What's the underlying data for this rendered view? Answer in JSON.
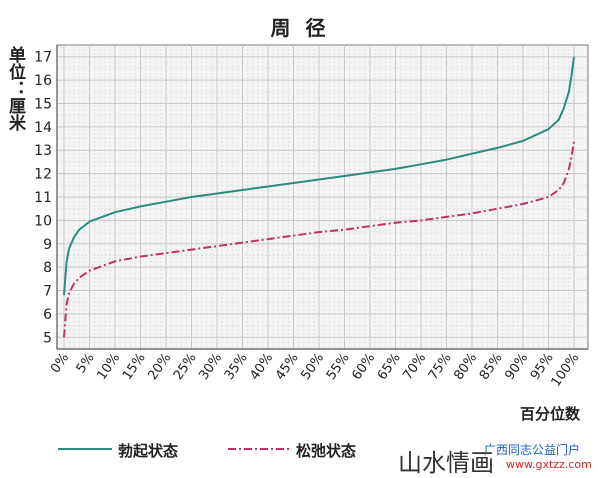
{
  "chart_data": {
    "type": "line",
    "title": "周 径",
    "ylabel": "单位：厘米",
    "xlabel": "百分位数",
    "ylim": [
      4.5,
      17.5
    ],
    "yticks": [
      5,
      6,
      7,
      8,
      9,
      10,
      11,
      12,
      13,
      14,
      15,
      16,
      17
    ],
    "xticks": [
      "0%",
      "5%",
      "10%",
      "15%",
      "20%",
      "25%",
      "30%",
      "35%",
      "40%",
      "45%",
      "50%",
      "55%",
      "60%",
      "65%",
      "70%",
      "75%",
      "80%",
      "85%",
      "90%",
      "95%",
      "100%"
    ],
    "x": [
      0,
      0.5,
      1,
      2,
      3,
      5,
      10,
      15,
      20,
      25,
      30,
      35,
      40,
      45,
      50,
      55,
      60,
      65,
      70,
      75,
      80,
      85,
      90,
      95,
      97,
      98,
      99,
      99.5,
      100
    ],
    "series": [
      {
        "name": "勃起状态",
        "color": "#2a8c80",
        "style": "solid",
        "values": [
          6.8,
          8.2,
          8.8,
          9.3,
          9.6,
          9.95,
          10.35,
          10.6,
          10.8,
          11.0,
          11.15,
          11.3,
          11.45,
          11.6,
          11.75,
          11.9,
          12.05,
          12.2,
          12.4,
          12.6,
          12.85,
          13.1,
          13.4,
          13.9,
          14.3,
          14.8,
          15.5,
          16.2,
          17.0
        ]
      },
      {
        "name": "松弛状态",
        "color": "#c0306e",
        "style": "dashdot",
        "values": [
          5.0,
          6.4,
          6.9,
          7.3,
          7.55,
          7.85,
          8.25,
          8.45,
          8.6,
          8.75,
          8.9,
          9.05,
          9.2,
          9.35,
          9.5,
          9.6,
          9.75,
          9.9,
          10.0,
          10.15,
          10.3,
          10.5,
          10.7,
          11.0,
          11.3,
          11.6,
          12.2,
          12.7,
          13.4
        ]
      }
    ],
    "grid": true,
    "legend_position": "bottom-left"
  },
  "watermark": {
    "name": "山水情画",
    "site": "广西同志公益门户",
    "url": "www.gxtzz.com"
  }
}
